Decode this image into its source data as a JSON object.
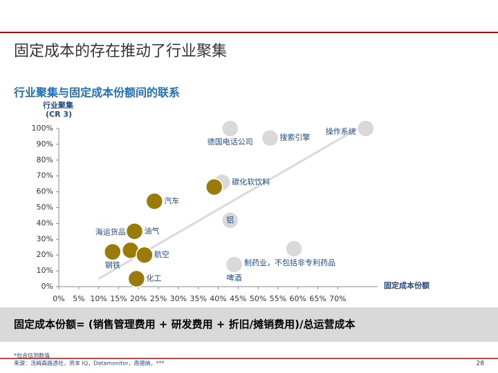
{
  "header": {
    "title": "固定成本的存在推动了行业聚集"
  },
  "chart_data": {
    "type": "scatter",
    "title": "行业聚集与固定成本份额间的联系",
    "y_label": [
      "行业聚集",
      "(CR 3)"
    ],
    "x_label": "固定成本份额",
    "xlim": [
      0,
      80
    ],
    "ylim": [
      0,
      100
    ],
    "xticks": [
      {
        "value": 0,
        "label": "0%"
      },
      {
        "value": 5,
        "label": "5%"
      },
      {
        "value": 10,
        "label": "10%"
      },
      {
        "value": 15,
        "label": "15%"
      },
      {
        "value": 20,
        "label": "20%"
      },
      {
        "value": 25,
        "label": "25%"
      },
      {
        "value": 30,
        "label": "30%"
      },
      {
        "value": 35,
        "label": "35%"
      },
      {
        "value": 40,
        "label": "40%"
      },
      {
        "value": 45,
        "label": "45%"
      },
      {
        "value": 50,
        "label": "50%"
      },
      {
        "value": 55,
        "label": "55%"
      },
      {
        "value": 60,
        "label": "60%"
      },
      {
        "value": 65,
        "label": "65%"
      },
      {
        "value": 70,
        "label": "70%"
      }
    ],
    "yticks": [
      {
        "value": 0,
        "label": "0%"
      },
      {
        "value": 10,
        "label": "10%"
      },
      {
        "value": 20,
        "label": "20%"
      },
      {
        "value": 30,
        "label": "30%"
      },
      {
        "value": 40,
        "label": "40%"
      },
      {
        "value": 50,
        "label": "50%"
      },
      {
        "value": 60,
        "label": "60%"
      },
      {
        "value": 70,
        "label": "70%"
      },
      {
        "value": 80,
        "label": "80%"
      },
      {
        "value": 90,
        "label": "90%"
      },
      {
        "value": 100,
        "label": "100%"
      }
    ],
    "trend_line": {
      "x": [
        10,
        75
      ],
      "y": [
        5,
        100
      ],
      "color": "#d9d9d9"
    },
    "series": [
      {
        "color": "#9a7b0a",
        "x": [
          13.5,
          18,
          19,
          21.5,
          19.5,
          24,
          39
        ],
        "values": [
          22,
          23,
          35,
          20,
          5,
          54,
          63
        ],
        "labels": [
          "钢铁",
          "海运货品",
          "油气",
          "航空",
          "化工",
          "汽车",
          null
        ]
      },
      {
        "color": "#d9d9d9",
        "x": [
          43,
          53,
          77,
          41,
          43,
          59,
          44
        ],
        "values": [
          100,
          94,
          100,
          66,
          42,
          24,
          14
        ],
        "labels": [
          "德国电话公司",
          "搜索引擎",
          "操作系统",
          "碳化软饮料",
          "铝",
          "制药业，不包括非专利药品",
          "啤酒"
        ]
      }
    ]
  },
  "formula": "固定成本份额= (销售管理费用 + 研发费用 + 折旧/摊销费用)/总运营成本",
  "footer": {
    "note": "*包含估测数值",
    "source": "来源：汤姆森路透社，资本 IQ，Datamonitor，高德纳，***",
    "page": "28"
  }
}
